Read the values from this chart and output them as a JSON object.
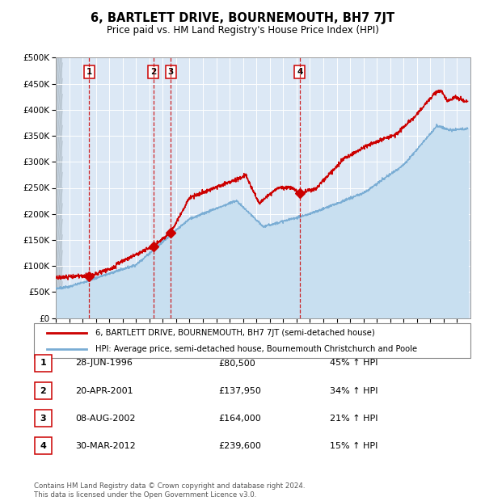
{
  "title": "6, BARTLETT DRIVE, BOURNEMOUTH, BH7 7JT",
  "subtitle": "Price paid vs. HM Land Registry's House Price Index (HPI)",
  "ylim": [
    0,
    500000
  ],
  "yticks": [
    0,
    50000,
    100000,
    150000,
    200000,
    250000,
    300000,
    350000,
    400000,
    450000,
    500000
  ],
  "year_start": 1994,
  "year_end": 2024,
  "sale_color": "#cc0000",
  "hpi_color": "#7aadd4",
  "hpi_fill_color": "#c8dff0",
  "vline_color": "#cc0000",
  "annotation_box_color": "#cc0000",
  "sales": [
    {
      "date_decimal": 1996.49,
      "price": 80500,
      "label": "1"
    },
    {
      "date_decimal": 2001.3,
      "price": 137950,
      "label": "2"
    },
    {
      "date_decimal": 2002.6,
      "price": 164000,
      "label": "3"
    },
    {
      "date_decimal": 2012.24,
      "price": 239600,
      "label": "4"
    }
  ],
  "legend_sale_label": "6, BARTLETT DRIVE, BOURNEMOUTH, BH7 7JT (semi-detached house)",
  "legend_hpi_label": "HPI: Average price, semi-detached house, Bournemouth Christchurch and Poole",
  "table": [
    {
      "num": "1",
      "date": "28-JUN-1996",
      "price": "£80,500",
      "change": "45% ↑ HPI"
    },
    {
      "num": "2",
      "date": "20-APR-2001",
      "price": "£137,950",
      "change": "34% ↑ HPI"
    },
    {
      "num": "3",
      "date": "08-AUG-2002",
      "price": "£164,000",
      "change": "21% ↑ HPI"
    },
    {
      "num": "4",
      "date": "30-MAR-2012",
      "price": "£239,600",
      "change": "15% ↑ HPI"
    }
  ],
  "footnote": "Contains HM Land Registry data © Crown copyright and database right 2024.\nThis data is licensed under the Open Government Licence v3.0.",
  "chart_bg": "#dce8f5",
  "hatch_bg": "#c8d4e0"
}
